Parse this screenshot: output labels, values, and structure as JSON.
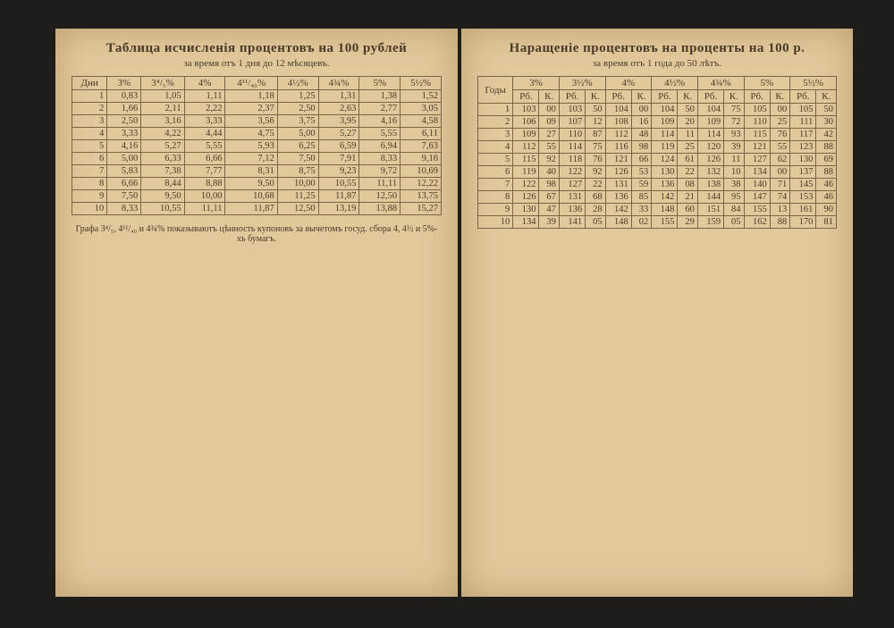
{
  "left_page": {
    "title": "Таблица исчисленія процентовъ на 100 рублей",
    "subtitle": "за время отъ 1 дня до 12 мѣсяцевъ.",
    "row_header": "Дни",
    "columns": [
      "3%",
      "3⁴/₅%",
      "4%",
      "4¹¹/₄₀%",
      "4½%",
      "4¾%",
      "5%",
      "5½%"
    ],
    "rows": [
      [
        "1",
        "0,83",
        "1,05",
        "1,11",
        "1,18",
        "1,25",
        "1,31",
        "1,38",
        "1,52"
      ],
      [
        "2",
        "1,66",
        "2,11",
        "2,22",
        "2,37",
        "2,50",
        "2,63",
        "2,77",
        "3,05"
      ],
      [
        "3",
        "2,50",
        "3,16",
        "3,33",
        "3,56",
        "3,75",
        "3,95",
        "4,16",
        "4,58"
      ],
      [
        "4",
        "3,33",
        "4,22",
        "4,44",
        "4,75",
        "5,00",
        "5,27",
        "5,55",
        "6,11"
      ],
      [
        "5",
        "4,16",
        "5,27",
        "5,55",
        "5,93",
        "6,25",
        "6,59",
        "6,94",
        "7,63"
      ],
      [
        "6",
        "5,00",
        "6,33",
        "6,66",
        "7,12",
        "7,50",
        "7,91",
        "8,33",
        "9,16"
      ],
      [
        "7",
        "5,83",
        "7,38",
        "7,77",
        "8,31",
        "8,75",
        "9,23",
        "9,72",
        "10,69"
      ],
      [
        "8",
        "6,66",
        "8,44",
        "8,88",
        "9,50",
        "10,00",
        "10,55",
        "11,11",
        "12,22"
      ],
      [
        "9",
        "7,50",
        "9,50",
        "10,00",
        "10,68",
        "11,25",
        "11,87",
        "12,50",
        "13,75"
      ],
      [
        "10",
        "8,33",
        "10,55",
        "11,11",
        "11,87",
        "12,50",
        "13,19",
        "13,88",
        "15,27"
      ]
    ],
    "footnote": "Графа 3⁴/₅, 4¹¹/₄₀ и 4¾% показываютъ цѣнность купоновъ за вычетомъ госуд. сбора 4, 4½ и 5%-хъ бумагъ."
  },
  "right_page": {
    "title": "Наращеніе процентовъ на проценты на 100 р.",
    "subtitle": "за время отъ 1 года до 50 лѣтъ.",
    "row_header": "Годы",
    "columns": [
      "3%",
      "3½%",
      "4%",
      "4½%",
      "4¾%",
      "5%",
      "5½%"
    ],
    "subheaders": [
      "Рб.",
      "К."
    ],
    "rows": [
      [
        "1",
        "103",
        "00",
        "103",
        "50",
        "104",
        "00",
        "104",
        "50",
        "104",
        "75",
        "105",
        "00",
        "105",
        "50"
      ],
      [
        "2",
        "106",
        "09",
        "107",
        "12",
        "108",
        "16",
        "109",
        "20",
        "109",
        "72",
        "110",
        "25",
        "111",
        "30"
      ],
      [
        "3",
        "109",
        "27",
        "110",
        "87",
        "112",
        "48",
        "114",
        "11",
        "114",
        "93",
        "115",
        "76",
        "117",
        "42"
      ],
      [
        "4",
        "112",
        "55",
        "114",
        "75",
        "116",
        "98",
        "119",
        "25",
        "120",
        "39",
        "121",
        "55",
        "123",
        "88"
      ],
      [
        "5",
        "115",
        "92",
        "118",
        "76",
        "121",
        "66",
        "124",
        "61",
        "126",
        "11",
        "127",
        "62",
        "130",
        "69"
      ],
      [
        "6",
        "119",
        "40",
        "122",
        "92",
        "126",
        "53",
        "130",
        "22",
        "132",
        "10",
        "134",
        "00",
        "137",
        "88"
      ],
      [
        "7",
        "122",
        "98",
        "127",
        "22",
        "131",
        "59",
        "136",
        "08",
        "138",
        "38",
        "140",
        "71",
        "145",
        "46"
      ],
      [
        "8",
        "126",
        "67",
        "131",
        "68",
        "136",
        "85",
        "142",
        "21",
        "144",
        "95",
        "147",
        "74",
        "153",
        "46"
      ],
      [
        "9",
        "130",
        "47",
        "136",
        "28",
        "142",
        "33",
        "148",
        "60",
        "151",
        "84",
        "155",
        "13",
        "161",
        "90"
      ],
      [
        "10",
        "134",
        "39",
        "141",
        "05",
        "148",
        "02",
        "155",
        "29",
        "159",
        "05",
        "162",
        "88",
        "170",
        "81"
      ]
    ]
  }
}
